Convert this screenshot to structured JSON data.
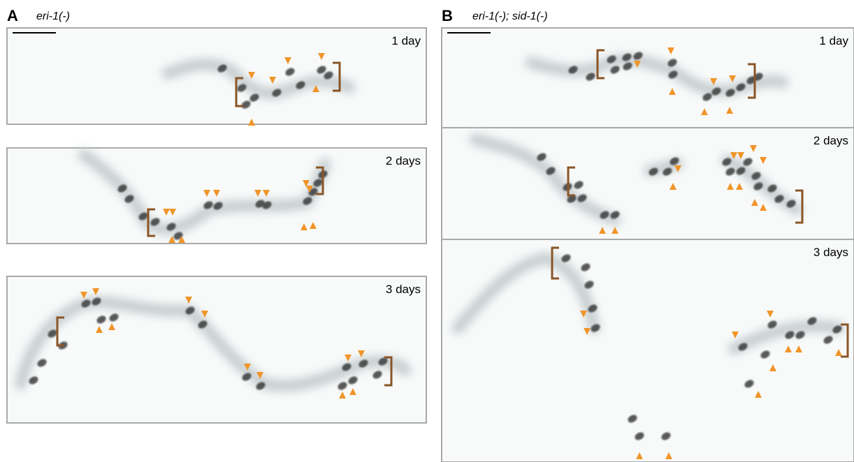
{
  "panels": [
    {
      "label": "A",
      "genotype": "eri-1(-)",
      "images": [
        {
          "time": "1 day"
        },
        {
          "time": "2 days"
        },
        {
          "time": "3 days"
        }
      ]
    },
    {
      "label": "B",
      "genotype": "eri-1(-); sid-1(-)",
      "images": [
        {
          "time": "1 day"
        },
        {
          "time": "2 days"
        },
        {
          "time": "3 days"
        }
      ]
    }
  ]
}
